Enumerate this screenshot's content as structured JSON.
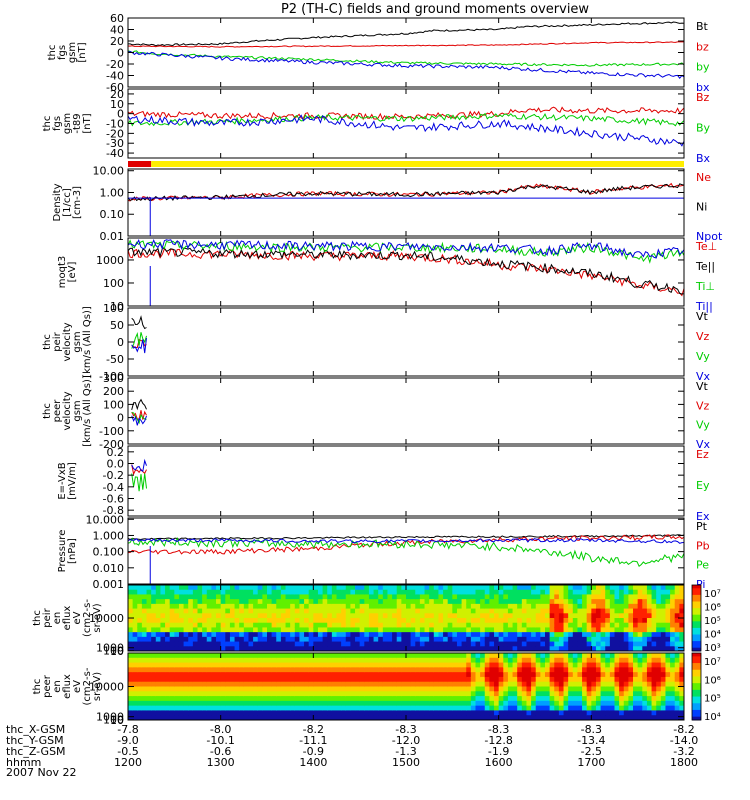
{
  "title": "P2 (TH-C) fields and ground moments overview",
  "date": "2007 Nov 22",
  "colors": {
    "black": "#000000",
    "red": "#e00000",
    "green": "#00cc00",
    "blue": "#0000e0",
    "yellow": "#ffee00"
  },
  "chart_data": [
    {
      "type": "line",
      "id": "fgs_gsm",
      "ylabel": [
        "thc",
        "fgs",
        "gsm",
        "[nT]"
      ],
      "ylim": [
        -60,
        60
      ],
      "ticks": [
        "60",
        "40",
        "20",
        "0",
        "-20",
        "-40",
        "-60"
      ],
      "tick_values": [
        60,
        40,
        20,
        0,
        -20,
        -40,
        -60
      ],
      "legend": [
        "Bt",
        "bz",
        "by",
        "bx"
      ],
      "series": [
        {
          "name": "Bt",
          "color": "black",
          "x": [
            1200,
            1230,
            1300,
            1330,
            1400,
            1430,
            1500,
            1530,
            1600,
            1630,
            1700,
            1730,
            1800
          ],
          "values": [
            15,
            13,
            15,
            19,
            26,
            28,
            33,
            38,
            40,
            45,
            48,
            50,
            52
          ],
          "noise": 1.5
        },
        {
          "name": "bz",
          "color": "red",
          "x": [
            1200,
            1300,
            1400,
            1500,
            1600,
            1700,
            1800
          ],
          "values": [
            11,
            10,
            11,
            12,
            13,
            17,
            18
          ],
          "noise": 0.8
        },
        {
          "name": "by",
          "color": "green",
          "x": [
            1200,
            1230,
            1300,
            1400,
            1500,
            1600,
            1700,
            1800
          ],
          "values": [
            2,
            -2,
            -7,
            -12,
            -18,
            -20,
            -22,
            -20
          ],
          "noise": 2
        },
        {
          "name": "bx",
          "color": "blue",
          "x": [
            1200,
            1230,
            1300,
            1400,
            1500,
            1600,
            1700,
            1800
          ],
          "values": [
            0,
            -3,
            -10,
            -17,
            -23,
            -26,
            -36,
            -42
          ],
          "noise": 3
        }
      ]
    },
    {
      "type": "line",
      "id": "fgs_gse_gip",
      "ylabel": [
        "thc",
        "fgs",
        "gsm",
        "-t89",
        "[nT]"
      ],
      "ylim": [
        -45,
        25
      ],
      "ticks": [
        "20",
        "10",
        "0",
        "-10",
        "-20",
        "-30",
        "-40"
      ],
      "tick_values": [
        20,
        10,
        0,
        -10,
        -20,
        -30,
        -40
      ],
      "legend": [
        "Bz",
        "By",
        "Bx"
      ],
      "series": [
        {
          "name": "Bz",
          "color": "red",
          "x": [
            1200,
            1300,
            1400,
            1500,
            1600,
            1630,
            1700,
            1800
          ],
          "values": [
            0,
            -2,
            -2,
            -3,
            0,
            4,
            3,
            3
          ],
          "noise": 3
        },
        {
          "name": "By",
          "color": "green",
          "x": [
            1200,
            1300,
            1400,
            1500,
            1600,
            1700,
            1800
          ],
          "values": [
            -10,
            -8,
            -4,
            -5,
            -2,
            -5,
            -10
          ],
          "noise": 3
        },
        {
          "name": "Bx",
          "color": "blue",
          "x": [
            1200,
            1300,
            1400,
            1500,
            1600,
            1700,
            1800
          ],
          "values": [
            -5,
            -10,
            -5,
            -15,
            -10,
            -20,
            -30
          ],
          "noise": 4
        }
      ]
    },
    {
      "type": "bar",
      "id": "mode_bar",
      "segments": [
        {
          "from": 1200,
          "to": 1225,
          "color": "red"
        },
        {
          "from": 1225,
          "to": 1800,
          "color": "yellow"
        }
      ]
    },
    {
      "type": "line",
      "id": "density",
      "log": true,
      "ylabel": [
        "Density",
        "[1/cc]",
        "[cm-3]"
      ],
      "ylim": [
        0.01,
        12
      ],
      "ticks": [
        "10.00",
        "1.00",
        "0.10",
        "0.01"
      ],
      "tick_values": [
        10,
        1,
        0.1,
        0.01
      ],
      "legend": [
        "Ne",
        "Ni",
        "Npot"
      ],
      "series": [
        {
          "name": "Ne",
          "color": "red",
          "x": [
            1200,
            1300,
            1400,
            1500,
            1600,
            1640,
            1700,
            1730,
            1800
          ],
          "values": [
            0.5,
            0.6,
            0.9,
            0.8,
            1.0,
            2.0,
            1.0,
            1.5,
            2.2
          ],
          "noise": 0.1
        },
        {
          "name": "Ni",
          "color": "black",
          "x": [
            1200,
            1300,
            1400,
            1500,
            1600,
            1640,
            1700,
            1730,
            1800
          ],
          "values": [
            0.5,
            0.6,
            0.9,
            0.8,
            1.0,
            2.0,
            1.0,
            1.5,
            2.2
          ],
          "noise": 0.1
        },
        {
          "name": "Npot",
          "color": "blue",
          "x": [
            1200,
            1800
          ],
          "values": [
            0.55,
            0.55
          ],
          "noise": 0.0
        }
      ]
    },
    {
      "type": "line",
      "id": "temperature",
      "log": true,
      "ylabel": [
        "moqt3",
        "[eV]"
      ],
      "ylim": [
        10,
        9000
      ],
      "ticks": [
        "1000",
        "100",
        "10"
      ],
      "tick_values": [
        1000,
        100,
        10
      ],
      "legend": [
        "Te⊥",
        "Te||",
        "Ti⊥",
        "Ti||"
      ],
      "series": [
        {
          "name": "Te⊥",
          "color": "red",
          "x": [
            1200,
            1300,
            1400,
            1500,
            1600,
            1650,
            1700,
            1750,
            1800
          ],
          "values": [
            2000,
            1800,
            1500,
            1500,
            600,
            400,
            200,
            80,
            40
          ],
          "noise": 0.2
        },
        {
          "name": "Te||",
          "color": "black",
          "x": [
            1200,
            1300,
            1400,
            1500,
            1600,
            1650,
            1700,
            1750,
            1800
          ],
          "values": [
            2200,
            2000,
            1700,
            1600,
            700,
            450,
            250,
            90,
            50
          ],
          "noise": 0.2
        },
        {
          "name": "Ti⊥",
          "color": "green",
          "x": [
            1200,
            1300,
            1400,
            1500,
            1600,
            1650,
            1700,
            1750,
            1800
          ],
          "values": [
            4500,
            4000,
            3500,
            3500,
            3000,
            2000,
            3500,
            1000,
            2000
          ],
          "noise": 0.2
        },
        {
          "name": "Ti||",
          "color": "blue",
          "x": [
            1200,
            1300,
            1400,
            1500,
            1600,
            1650,
            1700,
            1750,
            1800
          ],
          "values": [
            5000,
            4500,
            4000,
            3800,
            3500,
            2500,
            4000,
            1500,
            2500
          ],
          "noise": 0.2
        }
      ]
    },
    {
      "type": "line",
      "id": "peir_velocity",
      "ylabel": [
        "thc",
        "peir",
        "velocity",
        "gsm",
        "[km/s (All Qs)]"
      ],
      "ylim": [
        -100,
        100
      ],
      "ticks": [
        "100",
        "50",
        "0",
        "-50",
        "-100"
      ],
      "tick_values": [
        100,
        50,
        0,
        -50,
        -100
      ],
      "legend": [
        "Vt",
        "Vz",
        "Vy",
        "Vx"
      ],
      "series": [
        {
          "name": "Vt",
          "color": "black",
          "x": [
            1204,
            1220
          ],
          "values": [
            50,
            50
          ],
          "noise": 25
        },
        {
          "name": "Vz",
          "color": "red",
          "x": [
            1204,
            1220
          ],
          "values": [
            0,
            0
          ],
          "noise": 20
        },
        {
          "name": "Vy",
          "color": "green",
          "x": [
            1204,
            1220
          ],
          "values": [
            5,
            5
          ],
          "noise": 25
        },
        {
          "name": "Vx",
          "color": "blue",
          "x": [
            1204,
            1220
          ],
          "values": [
            -10,
            -10
          ],
          "noise": 25
        }
      ]
    },
    {
      "type": "line",
      "id": "peer_velocity",
      "ylabel": [
        "thc",
        "peer",
        "velocity",
        "gsm",
        "[km/s (All Qs)]"
      ],
      "ylim": [
        -200,
        300
      ],
      "ticks": [
        "300",
        "200",
        "100",
        "0",
        "-100",
        "-200"
      ],
      "tick_values": [
        300,
        200,
        100,
        0,
        -100,
        -200
      ],
      "legend": [
        "Vt",
        "Vz",
        "Vy",
        "Vx"
      ],
      "series": [
        {
          "name": "Vt",
          "color": "black",
          "x": [
            1204,
            1220
          ],
          "values": [
            100,
            100
          ],
          "noise": 45
        },
        {
          "name": "Vz",
          "color": "red",
          "x": [
            1204,
            1220
          ],
          "values": [
            20,
            20
          ],
          "noise": 40
        },
        {
          "name": "Vy",
          "color": "green",
          "x": [
            1204,
            1220
          ],
          "values": [
            0,
            0
          ],
          "noise": 40
        },
        {
          "name": "Vx",
          "color": "blue",
          "x": [
            1204,
            1220
          ],
          "values": [
            -20,
            -20
          ],
          "noise": 40
        }
      ]
    },
    {
      "type": "line",
      "id": "e_field",
      "ylabel": [
        "E=-VxB",
        "[mV/m]"
      ],
      "ylim": [
        -0.9,
        0.3
      ],
      "ticks": [
        "0.2",
        "0.0",
        "-0.2",
        "-0.4",
        "-0.6",
        "-0.8"
      ],
      "tick_values": [
        0.2,
        0.0,
        -0.2,
        -0.4,
        -0.6,
        -0.8
      ],
      "legend": [
        "Ez",
        "Ey",
        "Ex"
      ],
      "series": [
        {
          "name": "Ez",
          "color": "red",
          "x": [
            1204,
            1220
          ],
          "values": [
            -0.1,
            -0.1
          ],
          "noise": 0.12
        },
        {
          "name": "Ey",
          "color": "green",
          "x": [
            1204,
            1220
          ],
          "values": [
            -0.35,
            -0.35
          ],
          "noise": 0.18
        },
        {
          "name": "Ex",
          "color": "blue",
          "x": [
            1204,
            1220
          ],
          "values": [
            -0.05,
            -0.05
          ],
          "noise": 0.1
        }
      ]
    },
    {
      "type": "line",
      "id": "pressure",
      "log": true,
      "ylabel": [
        "Pressure",
        "[nPa]"
      ],
      "ylim": [
        0.001,
        12
      ],
      "ticks": [
        "10.000",
        "1.000",
        "0.100",
        "0.010",
        "0.001"
      ],
      "tick_values": [
        10,
        1,
        0.1,
        0.01,
        0.001
      ],
      "legend": [
        "Pt",
        "Pb",
        "Pe",
        "Pi"
      ],
      "series": [
        {
          "name": "Pt",
          "color": "black",
          "x": [
            1200,
            1300,
            1400,
            1500,
            1600,
            1700,
            1800
          ],
          "values": [
            0.6,
            0.65,
            0.7,
            0.8,
            0.85,
            0.9,
            1.0
          ],
          "noise": 0.05
        },
        {
          "name": "Pb",
          "color": "red",
          "x": [
            1200,
            1300,
            1400,
            1500,
            1600,
            1700,
            1800
          ],
          "values": [
            0.1,
            0.1,
            0.15,
            0.35,
            0.55,
            0.7,
            0.8
          ],
          "noise": 0.15
        },
        {
          "name": "Pe",
          "color": "green",
          "x": [
            1200,
            1300,
            1400,
            1500,
            1600,
            1650,
            1700,
            1750,
            1800
          ],
          "values": [
            0.4,
            0.35,
            0.3,
            0.3,
            0.2,
            0.1,
            0.04,
            0.02,
            0.05
          ],
          "noise": 0.25
        },
        {
          "name": "Pi",
          "color": "blue",
          "x": [
            1200,
            1300,
            1400,
            1500,
            1600,
            1700,
            1800
          ],
          "values": [
            0.5,
            0.5,
            0.45,
            0.45,
            0.5,
            0.5,
            0.4
          ],
          "noise": 0.1
        }
      ]
    },
    {
      "type": "heatmap",
      "id": "peir_eflux",
      "ylabel": [
        "thc",
        "peir",
        "en",
        "eflux",
        "eV",
        "(cm2-s-",
        "sr-eV)"
      ],
      "ylim": [
        10,
        20000
      ],
      "ticks": [
        "10000",
        "1000",
        "100",
        "10"
      ],
      "tick_values": [
        10000,
        1000,
        100,
        10
      ],
      "colorbar_ticks": [
        "10⁷",
        "10⁶",
        "10⁵",
        "10⁴",
        "10³"
      ]
    },
    {
      "type": "heatmap",
      "id": "peer_eflux",
      "ylabel": [
        "thc",
        "peer",
        "en",
        "eflux",
        "eV",
        "(cm2-s-",
        "sr-eV)"
      ],
      "ylim": [
        10,
        20000
      ],
      "ticks": [
        "10000",
        "1000",
        "100",
        "10"
      ],
      "tick_values": [
        10000,
        1000,
        100,
        10
      ],
      "colorbar_ticks": [
        "10⁷",
        "10⁶",
        "10⁵",
        "10⁴"
      ]
    }
  ],
  "x_axis": {
    "tick_values": [
      1200,
      1300,
      1400,
      1500,
      1600,
      1700,
      1800
    ],
    "rows": [
      {
        "label": "thc_X-GSM",
        "values": [
          "-7.8",
          "-8.0",
          "-8.2",
          "-8.3",
          "-8.3",
          "-8.3",
          "-8.2"
        ]
      },
      {
        "label": "thc_Y-GSM",
        "values": [
          "-9.0",
          "-10.1",
          "-11.1",
          "-12.0",
          "-12.8",
          "-13.4",
          "-14.0"
        ]
      },
      {
        "label": "thc_Z-GSM",
        "values": [
          "-0.5",
          "-0.6",
          "-0.9",
          "-1.3",
          "-1.9",
          "-2.5",
          "-3.2"
        ]
      },
      {
        "label": "hhmm",
        "values": [
          "1200",
          "1300",
          "1400",
          "1500",
          "1600",
          "1700",
          "1800"
        ]
      }
    ]
  }
}
